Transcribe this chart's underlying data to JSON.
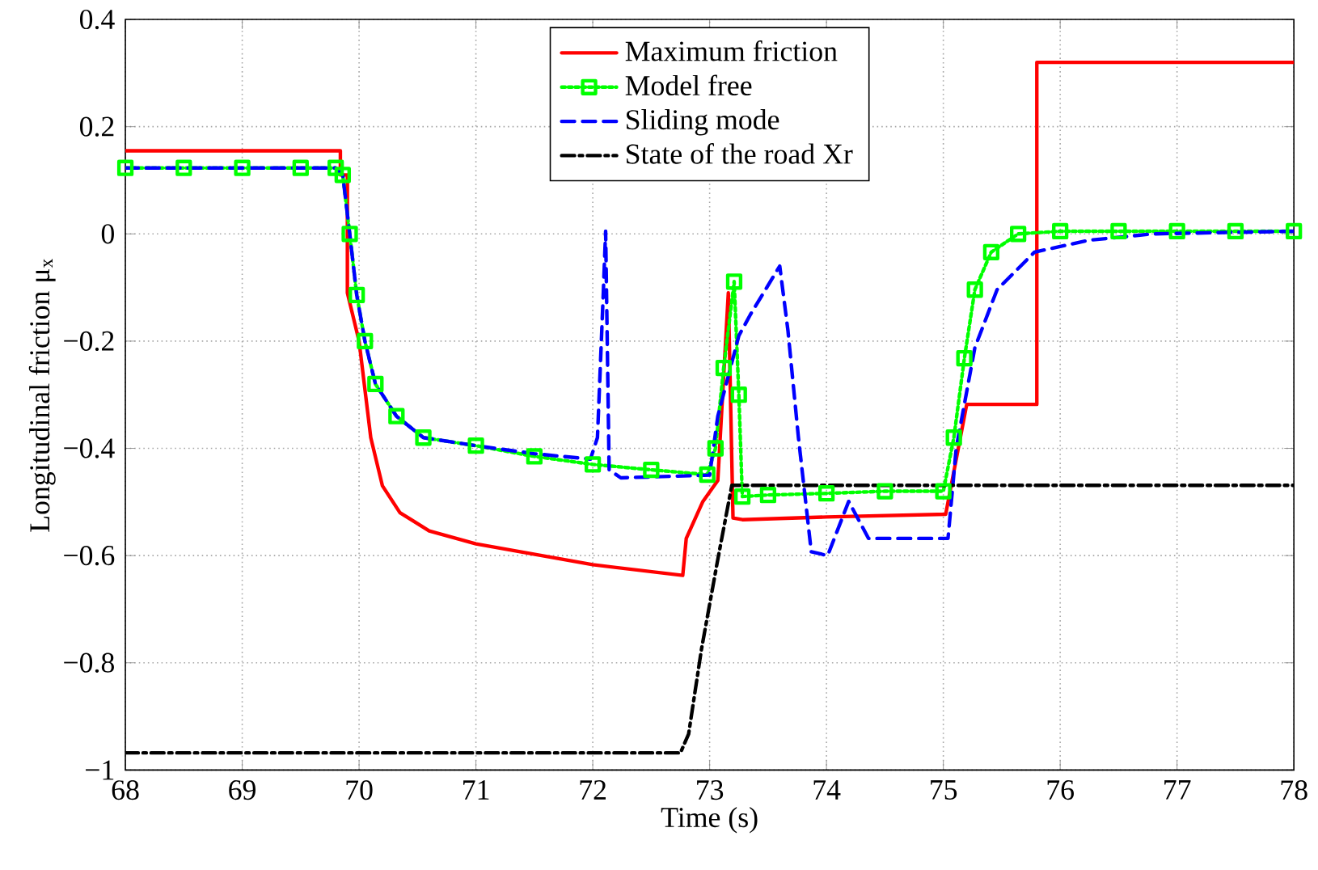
{
  "chart_data": {
    "type": "line",
    "xlabel": "Time (s)",
    "ylabel": "Longitudinal friction  μ$_{x}$",
    "xlim": [
      68,
      78
    ],
    "ylim": [
      -1,
      0.4
    ],
    "xticks": [
      68,
      69,
      70,
      71,
      72,
      73,
      74,
      75,
      76,
      77,
      78
    ],
    "yticks": [
      {
        "value": -1,
        "label": "−1"
      },
      {
        "value": -0.8,
        "label": "−0.8"
      },
      {
        "value": -0.6,
        "label": "−0.6"
      },
      {
        "value": -0.4,
        "label": "−0.4"
      },
      {
        "value": -0.2,
        "label": "−0.2"
      },
      0,
      0.2,
      0.4
    ],
    "grid": true,
    "legend": "top",
    "series": [
      {
        "name": "Maximum friction",
        "color": "#ff0000",
        "line_style": "solid",
        "marker": "none",
        "x": [
          68,
          69.84,
          69.84,
          69.9,
          69.9,
          70.0,
          70.1,
          70.2,
          70.35,
          70.6,
          71.0,
          72.0,
          72.77,
          72.8,
          72.94,
          73.07,
          73.16,
          73.2,
          73.28,
          74.0,
          75.02,
          75.2,
          75.8,
          75.8,
          78
        ],
        "values": [
          0.155,
          0.155,
          0.11,
          0.11,
          -0.11,
          -0.2,
          -0.38,
          -0.47,
          -0.52,
          -0.554,
          -0.578,
          -0.617,
          -0.637,
          -0.568,
          -0.5,
          -0.46,
          -0.11,
          -0.53,
          -0.533,
          -0.528,
          -0.523,
          -0.318,
          -0.318,
          0.32,
          0.32
        ]
      },
      {
        "name": "Model free",
        "color": "#00ff00",
        "line_style": "dotted",
        "marker": "square",
        "x": [
          68,
          68.5,
          69,
          69.5,
          69.8,
          69.86,
          69.92,
          69.98,
          70.05,
          70.14,
          70.32,
          70.55,
          71.0,
          71.5,
          72.0,
          72.5,
          72.98,
          73.05,
          73.12,
          73.21,
          73.25,
          73.28,
          73.5,
          74.0,
          74.5,
          75.0,
          75.09,
          75.18,
          75.27,
          75.41,
          75.64,
          76.0,
          76.5,
          77.0,
          77.5,
          78
        ],
        "values": [
          0.123,
          0.123,
          0.123,
          0.123,
          0.123,
          0.11,
          0.0,
          -0.114,
          -0.2,
          -0.28,
          -0.34,
          -0.38,
          -0.395,
          -0.415,
          -0.43,
          -0.44,
          -0.449,
          -0.4,
          -0.25,
          -0.089,
          -0.3,
          -0.49,
          -0.487,
          -0.484,
          -0.48,
          -0.48,
          -0.38,
          -0.232,
          -0.104,
          -0.034,
          0.0,
          0.005,
          0.005,
          0.005,
          0.005,
          0.005
        ]
      },
      {
        "name": "Sliding mode",
        "color": "#0000ff",
        "line_style": "dashed",
        "marker": "none",
        "x": [
          68,
          69.8,
          69.86,
          69.92,
          69.98,
          70.05,
          70.14,
          70.32,
          70.55,
          71.0,
          71.5,
          71.98,
          72.04,
          72.09,
          72.11,
          72.14,
          72.24,
          73.0,
          73.07,
          73.25,
          73.35,
          73.6,
          73.67,
          73.76,
          73.87,
          74.01,
          74.19,
          74.36,
          75.04,
          75.11,
          75.27,
          75.46,
          75.78,
          76.24,
          76.79,
          78
        ],
        "values": [
          0.123,
          0.123,
          0.11,
          0.0,
          -0.114,
          -0.2,
          -0.28,
          -0.34,
          -0.38,
          -0.395,
          -0.41,
          -0.42,
          -0.38,
          -0.11,
          0.005,
          -0.44,
          -0.455,
          -0.45,
          -0.34,
          -0.19,
          -0.15,
          -0.06,
          -0.18,
          -0.38,
          -0.593,
          -0.6,
          -0.499,
          -0.568,
          -0.568,
          -0.4,
          -0.212,
          -0.104,
          -0.034,
          -0.012,
          0.0,
          0.005
        ]
      },
      {
        "name": "State of the road Xr",
        "color": "#000000",
        "line_style": "dashdot",
        "marker": "none",
        "x": [
          68,
          72.75,
          72.82,
          72.93,
          73.07,
          73.19,
          78
        ],
        "values": [
          -0.968,
          -0.968,
          -0.933,
          -0.775,
          -0.607,
          -0.469,
          -0.469
        ]
      }
    ]
  }
}
